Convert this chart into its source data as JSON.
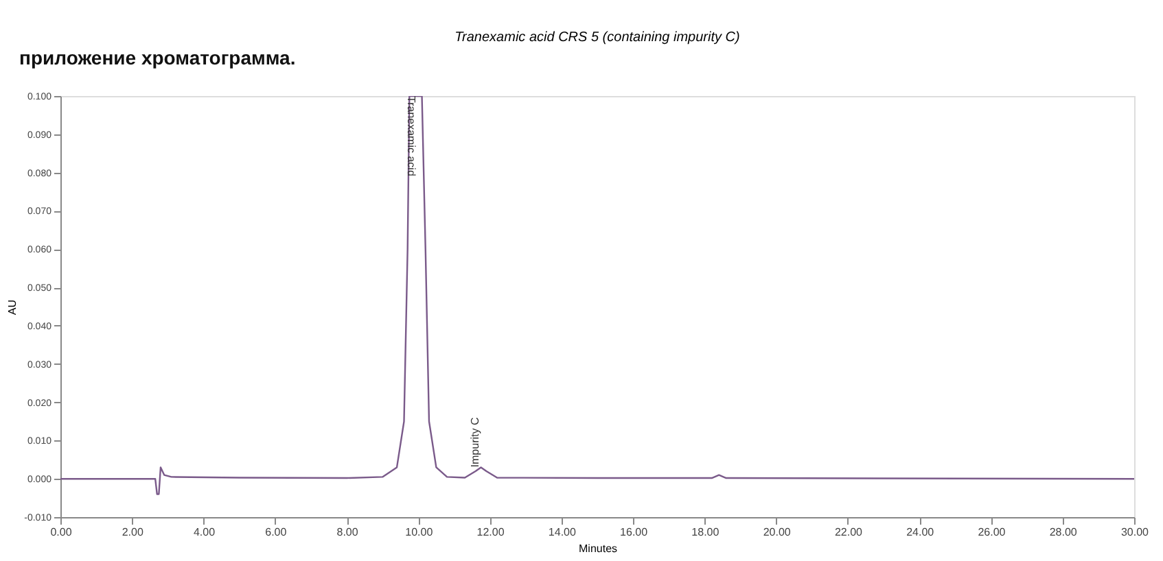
{
  "chart_data": {
    "type": "line",
    "title": "Tranexamic acid CRS 5 (containing impurity C)",
    "xlabel": "Minutes",
    "ylabel": "AU",
    "annotations": [
      "приложение хроматограмма.",
      {
        "text": "Tranexamic acid",
        "x": 9.9,
        "y": 0.1
      },
      {
        "text": "Impurity C",
        "x": 11.75,
        "y": 0.003
      }
    ],
    "series": [
      {
        "color": "#7a5a8a",
        "x": [
          0,
          2.5,
          2.65,
          2.7,
          2.75,
          2.8,
          2.9,
          3.1,
          5,
          8,
          9.0,
          9.4,
          9.6,
          9.7,
          9.75,
          10.1,
          10.2,
          10.3,
          10.5,
          10.8,
          11.3,
          11.6,
          11.75,
          11.9,
          12.2,
          15,
          18.2,
          18.4,
          18.6,
          30
        ],
        "values": [
          0,
          0,
          0,
          -0.004,
          -0.004,
          0.003,
          0.001,
          0.0005,
          0.0003,
          0.0002,
          0.0005,
          0.003,
          0.015,
          0.06,
          0.1,
          0.1,
          0.06,
          0.015,
          0.003,
          0.0005,
          0.0003,
          0.002,
          0.003,
          0.002,
          0.0003,
          0.0002,
          0.0002,
          0.001,
          0.0002,
          0
        ]
      }
    ],
    "xlim": [
      0,
      30
    ],
    "xticks": [
      {
        "value": 0,
        "label": "0.00"
      },
      {
        "value": 2,
        "label": "2.00"
      },
      {
        "value": 4,
        "label": "4.00"
      },
      {
        "value": 6,
        "label": "6.00"
      },
      {
        "value": 8,
        "label": "8.00"
      },
      {
        "value": 10,
        "label": "10.00"
      },
      {
        "value": 12,
        "label": "12.00"
      },
      {
        "value": 14,
        "label": "14.00"
      },
      {
        "value": 16,
        "label": "16.00"
      },
      {
        "value": 18,
        "label": "18.00"
      },
      {
        "value": 20,
        "label": "20.00"
      },
      {
        "value": 22,
        "label": "22.00"
      },
      {
        "value": 24,
        "label": "24.00"
      },
      {
        "value": 26,
        "label": "26.00"
      },
      {
        "value": 28,
        "label": "28.00"
      },
      {
        "value": 30,
        "label": "30.00"
      }
    ],
    "ylim": [
      -0.01,
      0.1
    ],
    "yticks": [
      {
        "value": -0.01,
        "label": "-0.010"
      },
      {
        "value": 0,
        "label": "0.000"
      },
      {
        "value": 0.01,
        "label": "0.010"
      },
      {
        "value": 0.02,
        "label": "0.020"
      },
      {
        "value": 0.03,
        "label": "0.030"
      },
      {
        "value": 0.04,
        "label": "0.040"
      },
      {
        "value": 0.05,
        "label": "0.050"
      },
      {
        "value": 0.06,
        "label": "0.060"
      },
      {
        "value": 0.07,
        "label": "0.070"
      },
      {
        "value": 0.08,
        "label": "0.080"
      },
      {
        "value": 0.09,
        "label": "0.090"
      },
      {
        "value": 0.1,
        "label": "0.100"
      }
    ],
    "grid": false,
    "marker": "none",
    "line_style": "solid"
  }
}
